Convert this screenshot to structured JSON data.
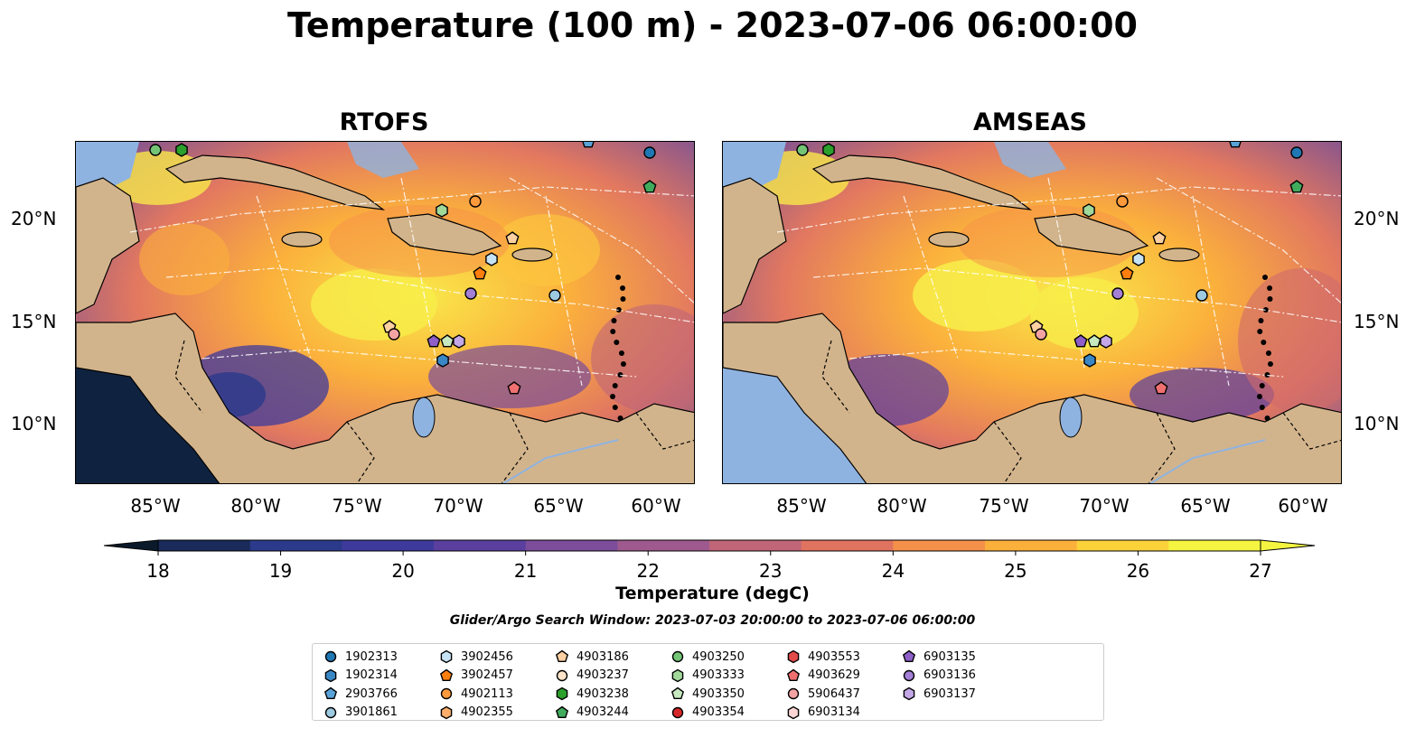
{
  "title": "Temperature (100 m) - 2023-07-06 06:00:00",
  "panels": [
    {
      "title": "RTOFS"
    },
    {
      "title": "AMSEAS"
    }
  ],
  "lat_labels": [
    "20°N",
    "15°N",
    "10°N"
  ],
  "lon_labels": [
    "85°W",
    "80°W",
    "75°W",
    "70°W",
    "65°W",
    "60°W"
  ],
  "colorbar": {
    "label": "Temperature (degC)",
    "ticks": [
      "18",
      "19",
      "20",
      "21",
      "22",
      "23",
      "24",
      "25",
      "26",
      "27"
    ],
    "range": [
      18,
      27
    ],
    "extend": "both",
    "colors": [
      "#1a2a5a",
      "#2b3a8a",
      "#3d3a9c",
      "#5a3f9e",
      "#7b4d9a",
      "#9e5a8e",
      "#c06678",
      "#e0735f",
      "#f5904a",
      "#fbb03c",
      "#fcd23b",
      "#f5f541"
    ]
  },
  "search_window": "Glider/Argo Search Window: 2023-07-03 20:00:00 to 2023-07-06 06:00:00",
  "legend": [
    {
      "id": "1902313",
      "marker": "circle",
      "color": "#1f77b4"
    },
    {
      "id": "1902314",
      "marker": "hexagon",
      "color": "#3a87c6"
    },
    {
      "id": "2903766",
      "marker": "pentagon",
      "color": "#5aa3d8"
    },
    {
      "id": "3901861",
      "marker": "circle",
      "color": "#9ecae1"
    },
    {
      "id": "3902456",
      "marker": "hexagon",
      "color": "#c6e2f5"
    },
    {
      "id": "3902457",
      "marker": "pentagon",
      "color": "#ff7f0e"
    },
    {
      "id": "4902113",
      "marker": "circle",
      "color": "#ff9a3c"
    },
    {
      "id": "4902355",
      "marker": "hexagon",
      "color": "#fdae6b"
    },
    {
      "id": "4903186",
      "marker": "pentagon",
      "color": "#fdd0a2"
    },
    {
      "id": "4903237",
      "marker": "circle",
      "color": "#fde3c8"
    },
    {
      "id": "4903238",
      "marker": "hexagon",
      "color": "#2ca02c"
    },
    {
      "id": "4903244",
      "marker": "pentagon",
      "color": "#41ab5d"
    },
    {
      "id": "4903250",
      "marker": "circle",
      "color": "#74c476"
    },
    {
      "id": "4903333",
      "marker": "hexagon",
      "color": "#a1d99b"
    },
    {
      "id": "4903350",
      "marker": "pentagon",
      "color": "#c7e9c0"
    },
    {
      "id": "4903354",
      "marker": "circle",
      "color": "#d62728"
    },
    {
      "id": "4903553",
      "marker": "hexagon",
      "color": "#e34a4a"
    },
    {
      "id": "4903629",
      "marker": "pentagon",
      "color": "#f07070"
    },
    {
      "id": "5906437",
      "marker": "circle",
      "color": "#f4a3a3"
    },
    {
      "id": "6903134",
      "marker": "hexagon",
      "color": "#fcd5d5"
    },
    {
      "id": "6903135",
      "marker": "pentagon",
      "color": "#8e5fc8"
    },
    {
      "id": "6903136",
      "marker": "circle",
      "color": "#a47fd6"
    },
    {
      "id": "6903137",
      "marker": "hexagon",
      "color": "#c4a7e7"
    }
  ]
}
